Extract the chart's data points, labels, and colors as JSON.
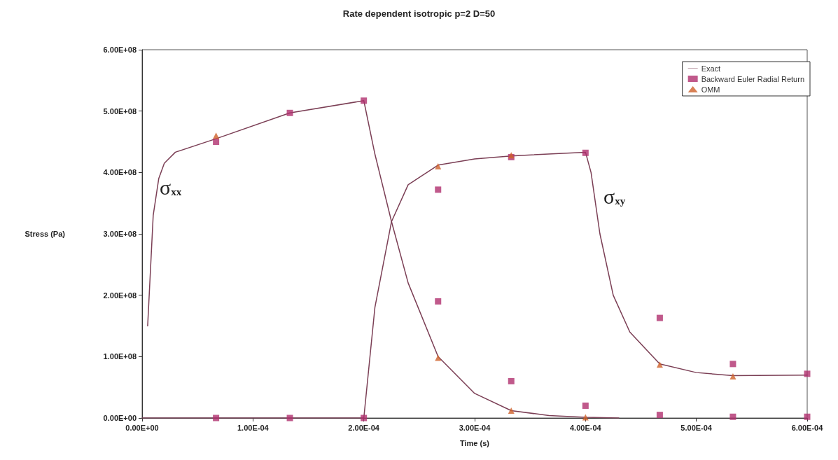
{
  "chart_data": {
    "type": "line",
    "title": "Rate dependent isotropic p=2 D=50",
    "xlabel": "Time (s)",
    "ylabel": "Stress (Pa)",
    "xlim": [
      0,
      0.0006
    ],
    "ylim": [
      0,
      600000000.0
    ],
    "xticks": [
      {
        "value": 0,
        "label": "0.00E+00"
      },
      {
        "value": 0.0001,
        "label": "1.00E-04"
      },
      {
        "value": 0.0002,
        "label": "2.00E-04"
      },
      {
        "value": 0.0003,
        "label": "3.00E-04"
      },
      {
        "value": 0.0004,
        "label": "4.00E-04"
      },
      {
        "value": 0.0005,
        "label": "5.00E-04"
      },
      {
        "value": 0.0006,
        "label": "6.00E-04"
      }
    ],
    "yticks": [
      {
        "value": 0,
        "label": "0.00E+00"
      },
      {
        "value": 100000000.0,
        "label": "1.00E+08"
      },
      {
        "value": 200000000.0,
        "label": "2.00E+08"
      },
      {
        "value": 300000000.0,
        "label": "3.00E+08"
      },
      {
        "value": 400000000.0,
        "label": "4.00E+08"
      },
      {
        "value": 500000000.0,
        "label": "5.00E+08"
      },
      {
        "value": 600000000.0,
        "label": "6.00E+08"
      }
    ],
    "grid": false,
    "legend": "top right",
    "annotations": [
      "σ$_{xx}$",
      "σ$_{xy}$"
    ],
    "series": [
      {
        "name": "Exact",
        "color": "#7b3f55",
        "marker": "none",
        "x": [
          5e-06,
          1e-05,
          1.5e-05,
          2e-05,
          3e-05,
          6.67e-05,
          0.0001333,
          0.0002,
          0.00021,
          0.000225,
          0.00024,
          0.000267,
          0.0003,
          0.000333,
          0.000367,
          0.0004,
          0.00043
        ],
        "values": [
          150000000.0,
          330000000.0,
          390000000.0,
          415000000.0,
          433000000.0,
          455000000.0,
          497000000.0,
          517000000.0,
          430000000.0,
          320000000.0,
          220000000.0,
          100000000.0,
          40000000.0,
          12000000.0,
          4000000.0,
          1000000.0,
          0
        ]
      },
      {
        "color": "#7b3f55",
        "marker": "none",
        "x": [
          0,
          0.0002,
          0.00021,
          0.000225,
          0.00024,
          0.000267,
          0.0003,
          0.000333,
          0.0004,
          0.000405,
          0.000413,
          0.000425,
          0.00044,
          0.000467,
          0.0005,
          0.000533,
          0.0006
        ],
        "values": [
          0,
          0,
          180000000.0,
          320000000.0,
          380000000.0,
          412000000.0,
          422000000.0,
          427000000.0,
          433000000.0,
          400000000.0,
          300000000.0,
          200000000.0,
          140000000.0,
          88000000.0,
          74000000.0,
          69000000.0,
          70000000.0
        ]
      },
      {
        "name": "Backward Euler Radial Return",
        "type": "scatter",
        "color": "#b0306e",
        "marker": "square",
        "x": [
          6.67e-05,
          0.0001333,
          0.0002,
          0.000267,
          0.000333,
          0.0004,
          0.000467,
          0.000533,
          0.0006,
          6.67e-05,
          0.0001333,
          0.0002,
          0.000267,
          0.000333,
          0.0004,
          0.000467,
          0.000533,
          0.0006
        ],
        "values": [
          450000000.0,
          497000000.0,
          517000000.0,
          190000000.0,
          60000000.0,
          20000000.0,
          5000000.0,
          2000000.0,
          2000000.0,
          0,
          0,
          0,
          372000000.0,
          425000000.0,
          432000000.0,
          163000000.0,
          88000000.0,
          72000000.0
        ]
      },
      {
        "name": "OMM",
        "type": "scatter",
        "color": "#d0622a",
        "marker": "triangle",
        "x": [
          6.67e-05,
          0.000267,
          0.000333,
          0.0004,
          0.000267,
          0.000333,
          0.000467,
          0.000533
        ],
        "values": [
          460000000.0,
          98000000.0,
          12000000.0,
          1000000.0,
          410000000.0,
          428000000.0,
          87000000.0,
          68000000.0
        ]
      }
    ]
  }
}
